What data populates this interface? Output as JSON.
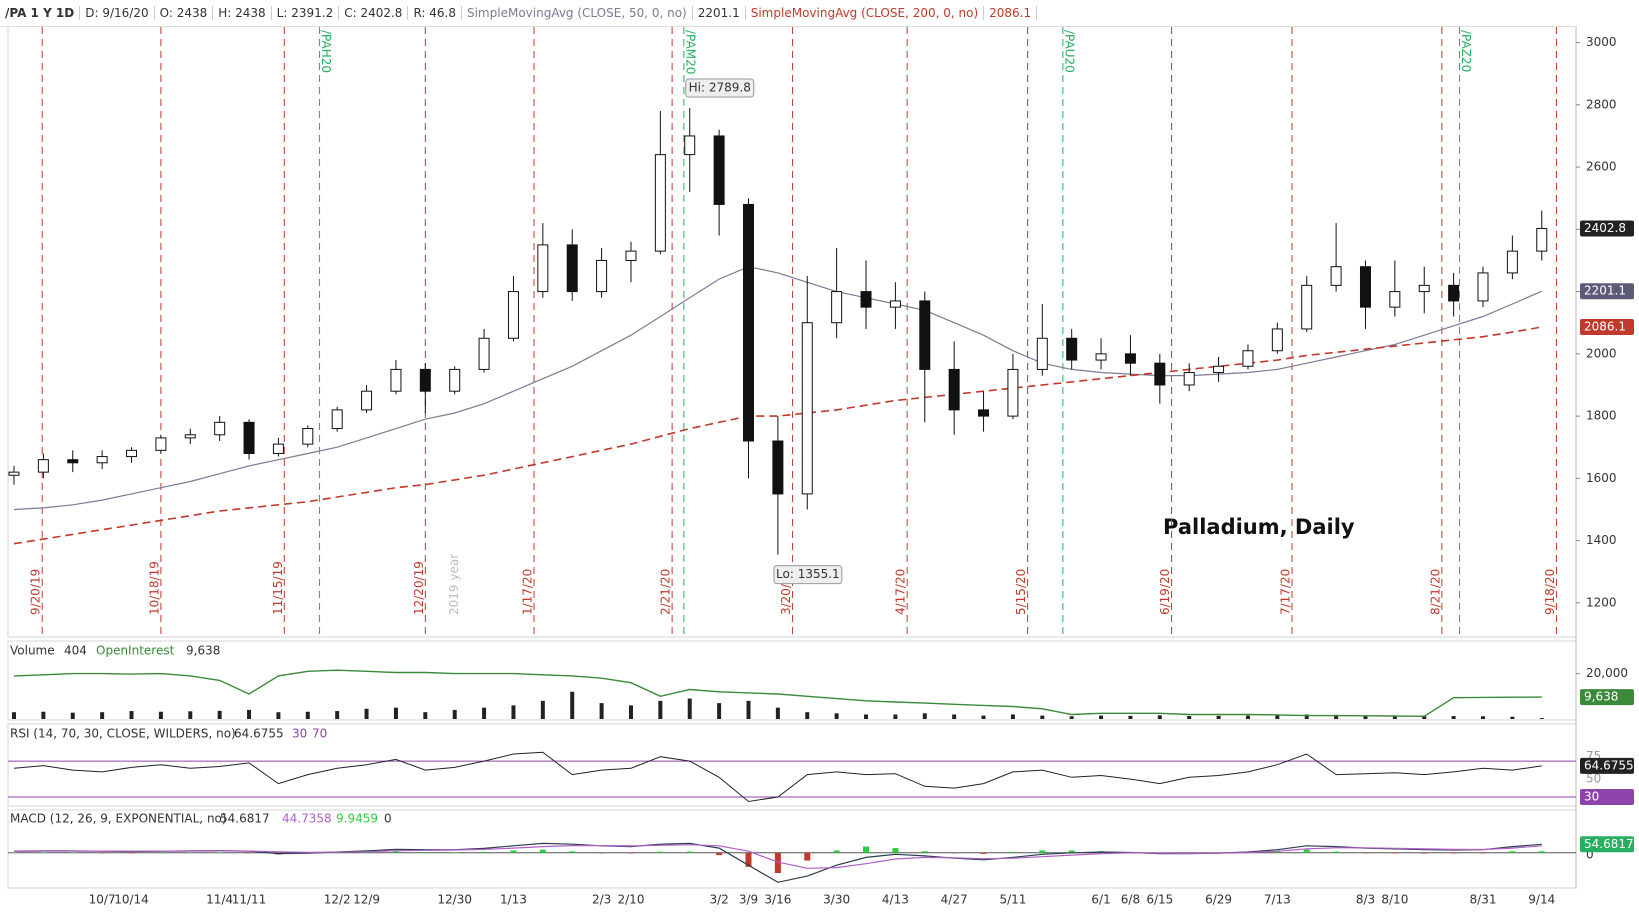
{
  "header": {
    "symbol": "/PA 1 Y 1D",
    "date": "D: 9/16/20",
    "open": "O: 2438",
    "high": "H: 2438",
    "low": "L: 2391.2",
    "close": "C: 2402.8",
    "range": "R: 46.8"
  },
  "chart_data": [
    {
      "type": "candlestick",
      "title": "Palladium, Daily",
      "categories": [
        null,
        null,
        null,
        "10/7",
        "10/14",
        null,
        null,
        "11/4",
        "11/11",
        null,
        null,
        "12/2",
        "12/9",
        null,
        null,
        "12/30",
        null,
        "1/13",
        null,
        null,
        "2/3",
        "2/10",
        null,
        null,
        "3/2",
        "3/9",
        "3/16",
        null,
        "3/30",
        null,
        "4/13",
        null,
        "4/27",
        null,
        "5/11",
        null,
        null,
        "6/1",
        "6/8",
        "6/15",
        null,
        "6/29",
        null,
        "7/13",
        null,
        null,
        "8/3",
        "8/10",
        null,
        null,
        "8/31",
        null,
        "9/14"
      ],
      "open": [
        1610,
        1620,
        1660,
        1650,
        1670,
        1690,
        1730,
        1740,
        1780,
        1680,
        1710,
        1760,
        1820,
        1880,
        1950,
        1880,
        1950,
        2050,
        2200,
        2350,
        2200,
        2300,
        2330,
        2640,
        2700,
        2480,
        1720,
        1550,
        2100,
        2200,
        2150,
        2170,
        1950,
        1820,
        1800,
        1950,
        2050,
        1980,
        2000,
        1970,
        1900,
        1940,
        1960,
        2010,
        2080,
        2220,
        2280,
        2150,
        2200,
        2220,
        2170,
        2260,
        2330
      ],
      "high": [
        1640,
        1680,
        1690,
        1690,
        1700,
        1740,
        1760,
        1800,
        1790,
        1730,
        1770,
        1830,
        1900,
        1980,
        1970,
        1960,
        2080,
        2250,
        2420,
        2400,
        2340,
        2360,
        2780,
        2789.8,
        2720,
        2500,
        1800,
        2250,
        2340,
        2300,
        2230,
        2200,
        2040,
        1880,
        2000,
        2160,
        2080,
        2050,
        2060,
        2000,
        1970,
        1990,
        2030,
        2100,
        2250,
        2420,
        2300,
        2300,
        2280,
        2260,
        2280,
        2380,
        2460
      ],
      "low": [
        1580,
        1600,
        1620,
        1630,
        1650,
        1680,
        1710,
        1720,
        1660,
        1670,
        1700,
        1750,
        1810,
        1870,
        1810,
        1870,
        1940,
        2040,
        2180,
        2170,
        2180,
        2230,
        2320,
        2520,
        2380,
        1600,
        1355.1,
        1500,
        2050,
        2080,
        2080,
        1780,
        1740,
        1750,
        1790,
        1930,
        1950,
        1950,
        1930,
        1840,
        1880,
        1910,
        1950,
        2000,
        2070,
        2200,
        2080,
        2120,
        2130,
        2120,
        2150,
        2240,
        2300
      ],
      "close": [
        1620,
        1660,
        1650,
        1670,
        1690,
        1730,
        1740,
        1780,
        1680,
        1710,
        1760,
        1820,
        1880,
        1950,
        1880,
        1950,
        2050,
        2200,
        2350,
        2200,
        2300,
        2330,
        2640,
        2700,
        2480,
        1720,
        1550,
        2100,
        2200,
        2150,
        2170,
        1950,
        1820,
        1800,
        1950,
        2050,
        1980,
        2000,
        1970,
        1900,
        1940,
        1960,
        2010,
        2080,
        2220,
        2280,
        2150,
        2200,
        2220,
        2170,
        2260,
        2330,
        2402.8
      ],
      "series": [
        {
          "name": "SimpleMovingAvg (CLOSE, 50, 0, no)",
          "color": "#7b7b95",
          "dashed": false,
          "values": [
            1500,
            1505,
            1515,
            1530,
            1550,
            1570,
            1590,
            1615,
            1640,
            1660,
            1680,
            1700,
            1730,
            1760,
            1790,
            1810,
            1840,
            1880,
            1920,
            1960,
            2010,
            2060,
            2120,
            2180,
            2240,
            2280,
            2260,
            2230,
            2200,
            2180,
            2160,
            2140,
            2100,
            2060,
            2010,
            1970,
            1950,
            1940,
            1935,
            1930,
            1930,
            1935,
            1940,
            1950,
            1970,
            1990,
            2010,
            2030,
            2060,
            2090,
            2120,
            2160,
            2201.1
          ]
        },
        {
          "name": "SimpleMovingAvg (CLOSE, 200, 0, no)",
          "color": "#c0392b",
          "dashed": true,
          "values": [
            1390,
            1405,
            1420,
            1435,
            1450,
            1465,
            1480,
            1495,
            1505,
            1515,
            1525,
            1540,
            1555,
            1570,
            1580,
            1595,
            1610,
            1630,
            1650,
            1670,
            1690,
            1710,
            1735,
            1760,
            1780,
            1800,
            1800,
            1810,
            1820,
            1835,
            1850,
            1860,
            1870,
            1880,
            1890,
            1900,
            1910,
            1920,
            1930,
            1940,
            1950,
            1960,
            1970,
            1980,
            1995,
            2005,
            2015,
            2025,
            2035,
            2045,
            2055,
            2070,
            2086.1
          ]
        }
      ],
      "ylim": [
        1100,
        3050
      ],
      "yticks": [
        1200,
        1400,
        1600,
        1800,
        2000,
        2200,
        2400,
        2600,
        2800,
        3000
      ],
      "annotations": [
        {
          "text": "Hi: 2789.8",
          "value": 2789.8
        },
        {
          "text": "Lo: 1355.1",
          "value": 1355.1
        }
      ],
      "expiries": [
        "9/20/19",
        "10/18/19",
        "11/15/19",
        "12/20/19",
        "1/17/20",
        "2/21/20",
        "3/20/20",
        "4/17/20",
        "5/15/20",
        "6/19/20",
        "7/17/20",
        "8/21/20",
        "9/18/20"
      ],
      "contracts": [
        "/PAH20",
        "/PAM20",
        "/PAU20",
        "/PAZ20"
      ],
      "year_label": "2019 year"
    },
    {
      "type": "volume",
      "title": "Volume",
      "series": [
        {
          "name": "Volume",
          "color": "#222222",
          "values": [
            3000,
            3200,
            2800,
            3000,
            3500,
            3200,
            3400,
            3600,
            4000,
            3000,
            3200,
            3500,
            4500,
            5000,
            3000,
            4000,
            5000,
            6000,
            8000,
            12000,
            7000,
            6000,
            8000,
            9000,
            7000,
            8000,
            5000,
            3000,
            2500,
            2000,
            2000,
            2500,
            2000,
            1500,
            2000,
            1500,
            1200,
            1500,
            1400,
            1600,
            1300,
            1400,
            1500,
            1600,
            2000,
            1800,
            1500,
            1400,
            1500,
            1300,
            1200,
            1000,
            404
          ]
        },
        {
          "name": "OpenInterest",
          "color": "#3a8a3a",
          "values": [
            19000,
            19500,
            20000,
            20000,
            19800,
            20000,
            19000,
            17000,
            11000,
            19000,
            21000,
            21500,
            21000,
            20500,
            20500,
            20000,
            20000,
            20000,
            19500,
            19000,
            18000,
            16000,
            10000,
            13000,
            12000,
            11500,
            11000,
            10000,
            9000,
            8000,
            7500,
            7000,
            6500,
            6000,
            5500,
            4500,
            2000,
            2500,
            2500,
            2500,
            2000,
            2000,
            2000,
            1800,
            1500,
            1500,
            1400,
            1300,
            1200,
            9400,
            9500,
            9600,
            9638
          ],
          "last_label": "9,638"
        }
      ],
      "ylim": [
        0,
        26000
      ],
      "yticks": [
        {
          "value": 20000,
          "label": "20,000"
        }
      ]
    },
    {
      "type": "rsi",
      "title": "RSI (14, 70, 30, CLOSE, WILDERS, no)",
      "color": "#222222",
      "values": [
        62,
        65,
        60,
        58,
        63,
        66,
        62,
        64,
        68,
        45,
        55,
        62,
        66,
        72,
        60,
        63,
        70,
        78,
        80,
        55,
        60,
        62,
        75,
        70,
        52,
        25,
        30,
        55,
        58,
        55,
        56,
        42,
        40,
        45,
        58,
        60,
        52,
        54,
        50,
        45,
        52,
        54,
        58,
        66,
        78,
        55,
        56,
        57,
        55,
        58,
        62,
        60,
        64.6755
      ],
      "levels": [
        30,
        70
      ],
      "level_color": "#8e44ad",
      "ylim": [
        20,
        88
      ],
      "yticks": [
        50,
        75
      ]
    },
    {
      "type": "macd",
      "title": "MACD (12, 26, 9, EXPONENTIAL, no)",
      "macd": [
        10,
        12,
        12,
        10,
        8,
        10,
        12,
        14,
        10,
        -5,
        -2,
        5,
        12,
        22,
        20,
        20,
        28,
        45,
        60,
        55,
        45,
        40,
        55,
        60,
        30,
        -80,
        -190,
        -150,
        -80,
        -30,
        -10,
        -20,
        -35,
        -45,
        -30,
        -10,
        0,
        5,
        2,
        -5,
        -5,
        -2,
        5,
        20,
        45,
        40,
        30,
        25,
        20,
        18,
        20,
        40,
        54.6817
      ],
      "signal": [
        8,
        10,
        11,
        11,
        10,
        10,
        11,
        12,
        11,
        6,
        3,
        4,
        7,
        13,
        16,
        18,
        22,
        30,
        40,
        46,
        46,
        44,
        48,
        52,
        45,
        10,
        -60,
        -100,
        -95,
        -70,
        -40,
        -30,
        -32,
        -38,
        -35,
        -25,
        -15,
        -5,
        0,
        -2,
        -4,
        -3,
        1,
        10,
        25,
        32,
        32,
        29,
        25,
        22,
        21,
        30,
        44.7358
      ],
      "hist": [
        2,
        2,
        1,
        -1,
        -2,
        0,
        1,
        2,
        -1,
        -11,
        -5,
        1,
        5,
        9,
        4,
        2,
        6,
        15,
        20,
        9,
        -1,
        -4,
        7,
        8,
        -15,
        -90,
        -130,
        -50,
        15,
        40,
        30,
        10,
        -3,
        -7,
        5,
        15,
        15,
        10,
        2,
        -3,
        -1,
        1,
        4,
        10,
        20,
        8,
        -2,
        -4,
        -5,
        -4,
        -1,
        10,
        9.9459
      ],
      "colors": {
        "macd": "#2c3e50",
        "signal": "#b05fc9",
        "up": "#2ecc40",
        "down": "#c0392b"
      },
      "ylim": [
        -220,
        140
      ],
      "yticks": [
        0
      ]
    }
  ]
}
